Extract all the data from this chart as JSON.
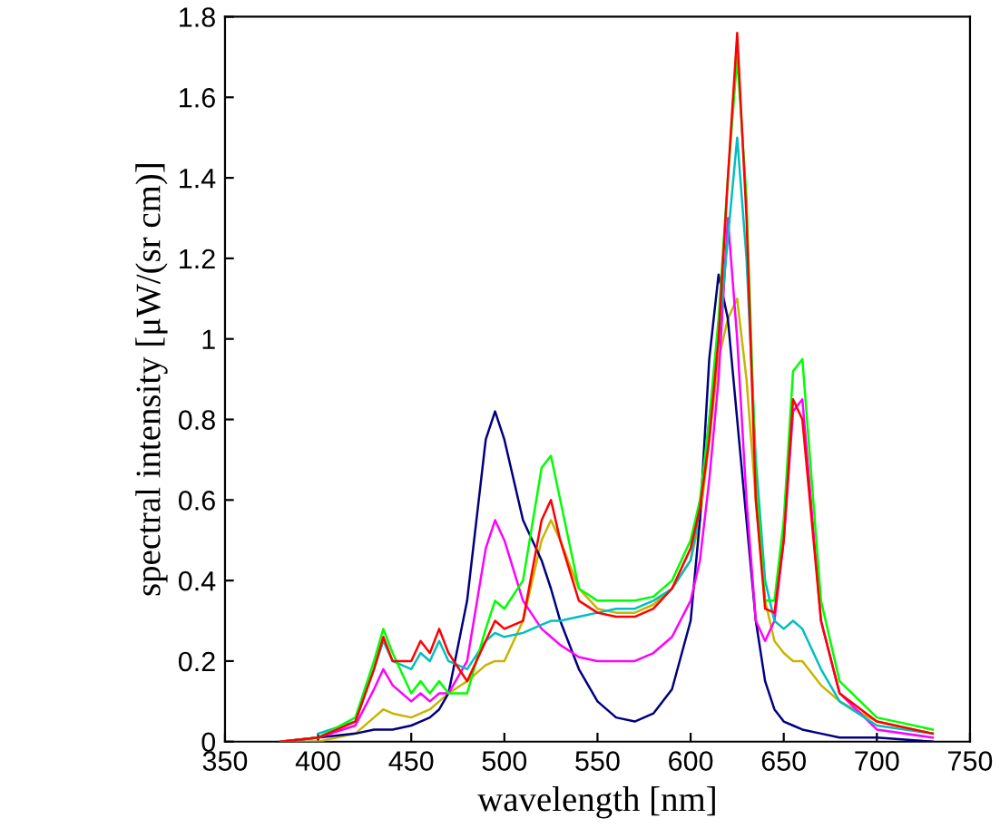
{
  "chart_data": {
    "type": "line",
    "xlabel": "wavelength [nm]",
    "ylabel": "spectral intensity [μW/(sr cm)]",
    "x": [
      380,
      400,
      420,
      430,
      435,
      440,
      450,
      455,
      460,
      465,
      470,
      480,
      490,
      495,
      500,
      510,
      520,
      525,
      530,
      540,
      550,
      560,
      570,
      580,
      590,
      600,
      605,
      610,
      615,
      620,
      625,
      630,
      635,
      640,
      645,
      650,
      655,
      660,
      670,
      680,
      700,
      730
    ],
    "series": [
      {
        "color": "#000080",
        "values": [
          0,
          0.01,
          0.02,
          0.03,
          0.03,
          0.03,
          0.04,
          0.05,
          0.06,
          0.08,
          0.12,
          0.35,
          0.75,
          0.82,
          0.75,
          0.55,
          0.45,
          0.38,
          0.3,
          0.18,
          0.1,
          0.06,
          0.05,
          0.07,
          0.13,
          0.3,
          0.55,
          0.95,
          1.16,
          1.05,
          0.8,
          0.55,
          0.3,
          0.15,
          0.08,
          0.05,
          0.04,
          0.03,
          0.02,
          0.01,
          0.01,
          0
        ]
      },
      {
        "color": "#ff0000",
        "values": [
          0,
          0.01,
          0.05,
          0.18,
          0.26,
          0.2,
          0.2,
          0.25,
          0.22,
          0.28,
          0.22,
          0.15,
          0.25,
          0.3,
          0.28,
          0.3,
          0.55,
          0.6,
          0.5,
          0.35,
          0.32,
          0.31,
          0.31,
          0.33,
          0.38,
          0.48,
          0.58,
          0.75,
          1.0,
          1.4,
          1.76,
          1.3,
          0.6,
          0.33,
          0.32,
          0.5,
          0.85,
          0.8,
          0.3,
          0.12,
          0.05,
          0.02
        ]
      },
      {
        "color": "#00ff00",
        "values": [
          0,
          0.01,
          0.06,
          0.2,
          0.28,
          0.22,
          0.12,
          0.15,
          0.12,
          0.15,
          0.12,
          0.12,
          0.28,
          0.35,
          0.33,
          0.4,
          0.68,
          0.71,
          0.6,
          0.38,
          0.35,
          0.35,
          0.35,
          0.36,
          0.4,
          0.5,
          0.6,
          0.8,
          1.05,
          1.4,
          1.7,
          1.35,
          0.65,
          0.35,
          0.35,
          0.55,
          0.92,
          0.95,
          0.35,
          0.15,
          0.06,
          0.03
        ]
      },
      {
        "color": "#ff00ff",
        "values": [
          0,
          0.01,
          0.04,
          0.13,
          0.18,
          0.14,
          0.1,
          0.12,
          0.1,
          0.12,
          0.12,
          0.2,
          0.48,
          0.55,
          0.5,
          0.35,
          0.28,
          0.26,
          0.24,
          0.21,
          0.2,
          0.2,
          0.2,
          0.22,
          0.26,
          0.35,
          0.45,
          0.65,
          0.9,
          1.3,
          1.0,
          0.6,
          0.3,
          0.25,
          0.3,
          0.5,
          0.82,
          0.85,
          0.3,
          0.12,
          0.03,
          0.01
        ]
      },
      {
        "color": "#c8b400",
        "values": [
          0,
          0.0,
          0.02,
          0.06,
          0.08,
          0.07,
          0.06,
          0.07,
          0.08,
          0.1,
          0.12,
          0.15,
          0.19,
          0.2,
          0.2,
          0.3,
          0.5,
          0.55,
          0.5,
          0.38,
          0.33,
          0.32,
          0.32,
          0.34,
          0.38,
          0.45,
          0.55,
          0.75,
          0.95,
          1.05,
          1.1,
          0.9,
          0.6,
          0.35,
          0.25,
          0.22,
          0.2,
          0.2,
          0.14,
          0.1,
          0.05,
          0.02
        ]
      },
      {
        "color": "#00bfbf",
        "values": [
          null,
          0.02,
          0.05,
          0.18,
          0.25,
          0.2,
          0.18,
          0.22,
          0.2,
          0.25,
          0.2,
          0.18,
          0.25,
          0.27,
          0.26,
          0.27,
          0.29,
          0.3,
          0.3,
          0.31,
          0.32,
          0.33,
          0.33,
          0.35,
          0.38,
          0.45,
          0.58,
          0.8,
          1.0,
          1.25,
          1.5,
          1.2,
          0.7,
          0.4,
          0.3,
          0.28,
          0.3,
          0.28,
          0.18,
          0.1,
          0.04,
          0.02
        ]
      }
    ],
    "xlim": [
      350,
      750
    ],
    "xticks": [
      350,
      400,
      450,
      500,
      550,
      600,
      650,
      700,
      750
    ],
    "ylim": [
      0,
      1.8
    ],
    "yticks": [
      0,
      0.2,
      0.4,
      0.6,
      0.8,
      1,
      1.2,
      1.4,
      1.6,
      1.8
    ],
    "grid": false,
    "legend": false,
    "marker": "none",
    "line_style": "solid"
  }
}
